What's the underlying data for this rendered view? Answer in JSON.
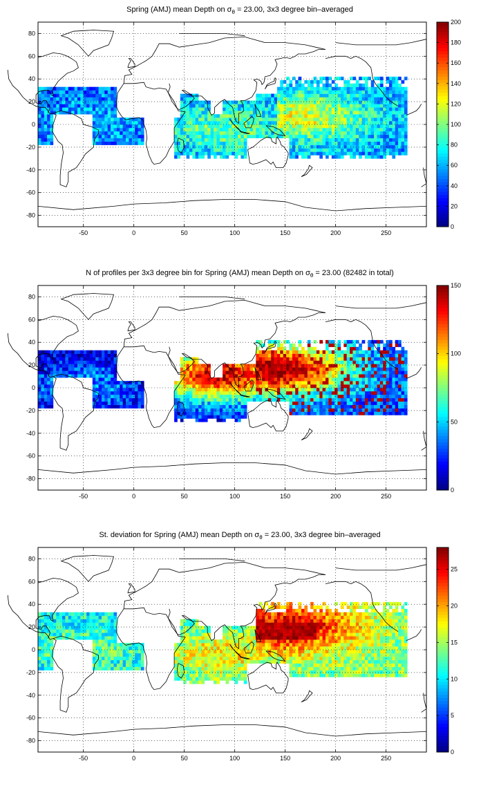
{
  "chart_data": [
    {
      "type": "heatmap",
      "title_parts": {
        "before": "Spring (AMJ) mean Depth on ",
        "sigma": "σ",
        "sub": "θ",
        "after": " = 23.00, 3x3 degree bin–averaged"
      },
      "xlim": [
        -95,
        290
      ],
      "ylim": [
        -90,
        90
      ],
      "xticks": [
        "-50",
        "0",
        "50",
        "100",
        "150",
        "200",
        "250"
      ],
      "yticks": [
        "80",
        "60",
        "40",
        "20",
        "0",
        "-20",
        "-40",
        "-60",
        "-80"
      ],
      "colorbar": {
        "range": [
          0,
          200
        ],
        "ticks": [
          "0",
          "20",
          "40",
          "60",
          "80",
          "100",
          "120",
          "140",
          "160",
          "180",
          "200"
        ]
      },
      "regions": [
        {
          "x": [
            140,
            270
          ],
          "y": [
            -30,
            40
          ],
          "center": [
            165,
            5
          ],
          "peak": 120,
          "base": 55
        },
        {
          "x": [
            40,
            140
          ],
          "y": [
            -30,
            25
          ],
          "center": [
            90,
            -5
          ],
          "peak": 95,
          "base": 55
        },
        {
          "x": [
            -95,
            15
          ],
          "y": [
            -20,
            30
          ],
          "center": [
            -50,
            0
          ],
          "peak": 60,
          "base": 45
        }
      ]
    },
    {
      "type": "heatmap",
      "title": "N of profiles per 3x3 degree bin for Spring (AMJ) mean Depth on σθ = 23.00 (82482 in total)",
      "title_parts": {
        "before": "N of profiles per 3x3 degree bin for Spring (AMJ) mean Depth on ",
        "sigma": "σ",
        "sub": "θ",
        "after": " = 23.00 (82482 in total)"
      },
      "xlim": [
        -95,
        290
      ],
      "ylim": [
        -90,
        90
      ],
      "xticks": [
        "-50",
        "0",
        "50",
        "100",
        "150",
        "200",
        "250"
      ],
      "yticks": [
        "80",
        "60",
        "40",
        "20",
        "0",
        "-20",
        "-40",
        "-60",
        "-80"
      ],
      "colorbar": {
        "range": [
          0,
          150
        ],
        "ticks": [
          "0",
          "50",
          "100",
          "150"
        ]
      },
      "regions": [
        {
          "x": [
            120,
            270
          ],
          "y": [
            -25,
            40
          ],
          "center": [
            140,
            15
          ],
          "peak": 150,
          "base": 30
        },
        {
          "x": [
            40,
            140
          ],
          "y": [
            -30,
            25
          ],
          "center": [
            85,
            10
          ],
          "peak": 140,
          "base": 20
        },
        {
          "x": [
            -95,
            15
          ],
          "y": [
            -20,
            30
          ],
          "center": [
            -50,
            0
          ],
          "peak": 40,
          "base": 10
        }
      ]
    },
    {
      "type": "heatmap",
      "title_parts": {
        "before": "St. deviation for Spring (AMJ) mean Depth on ",
        "sigma": "σ",
        "sub": "θ",
        "after": " = 23.00, 3x3 degree bin–averaged"
      },
      "xlim": [
        -95,
        290
      ],
      "ylim": [
        -90,
        90
      ],
      "xticks": [
        "-50",
        "0",
        "50",
        "100",
        "150",
        "200",
        "250"
      ],
      "yticks": [
        "80",
        "60",
        "40",
        "20",
        "0",
        "-20",
        "-40",
        "-60",
        "-80"
      ],
      "colorbar": {
        "range": [
          0,
          28
        ],
        "ticks": [
          "0",
          "5",
          "10",
          "15",
          "20",
          "25"
        ]
      },
      "regions": [
        {
          "x": [
            120,
            270
          ],
          "y": [
            -25,
            40
          ],
          "center": [
            150,
            18
          ],
          "peak": 26,
          "base": 14
        },
        {
          "x": [
            40,
            140
          ],
          "y": [
            -30,
            25
          ],
          "center": [
            90,
            -5
          ],
          "peak": 18,
          "base": 12
        },
        {
          "x": [
            -95,
            15
          ],
          "y": [
            -20,
            30
          ],
          "center": [
            -50,
            0
          ],
          "peak": 13,
          "base": 10
        }
      ]
    }
  ]
}
